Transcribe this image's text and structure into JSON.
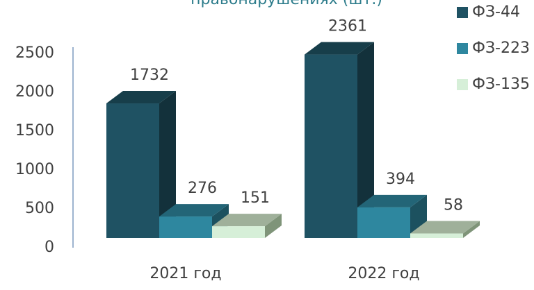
{
  "chart_data": {
    "type": "bar3d",
    "title": "правонарушениях (шт.)",
    "categories": [
      "2021 год",
      "2022 год"
    ],
    "series": [
      {
        "name": "ФЗ-44",
        "color": "#1f5263",
        "values": [
          1732,
          2361
        ]
      },
      {
        "name": "ФЗ-223",
        "color": "#2e879f",
        "values": [
          276,
          394
        ]
      },
      {
        "name": "ФЗ-135",
        "color": "#d6efd8",
        "values": [
          151,
          58
        ]
      }
    ],
    "ylim": [
      0,
      2500
    ],
    "yticks": [
      0,
      500,
      1000,
      1500,
      2000,
      2500
    ],
    "grid": false,
    "legend": "top-right"
  }
}
